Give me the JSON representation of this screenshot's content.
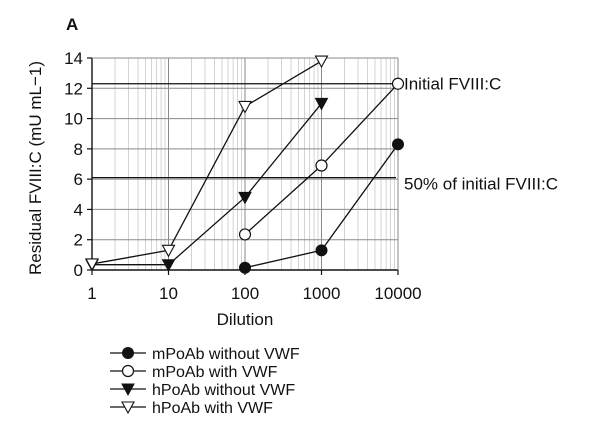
{
  "chart_data": {
    "type": "line",
    "panel_label": "A",
    "xlabel": "Dilution",
    "ylabel": "Residual FVIII:C (mU mL−1)",
    "x_scale": "log",
    "xlim": [
      1,
      10000
    ],
    "ylim": [
      0,
      14
    ],
    "x_ticks": [
      "1",
      "10",
      "100",
      "1000",
      "10000"
    ],
    "y_ticks": [
      "0",
      "2",
      "4",
      "6",
      "8",
      "10",
      "12",
      "14"
    ],
    "grid": true,
    "reference_lines": [
      {
        "label": "Initial FVIII:C",
        "y": 12.3
      },
      {
        "label": "50% of initial FVIII:C",
        "y": 6.1
      }
    ],
    "legend_position": "bottom-left",
    "series": [
      {
        "name": "mPoAb without VWF",
        "marker": "filled-circle",
        "x": [
          100,
          1000,
          10000
        ],
        "y": [
          0.15,
          1.3,
          8.3
        ]
      },
      {
        "name": "mPoAb with VWF",
        "marker": "open-circle",
        "x": [
          100,
          1000,
          10000
        ],
        "y": [
          2.35,
          6.9,
          12.3
        ]
      },
      {
        "name": "hPoAb without VWF",
        "marker": "filled-triangle-down",
        "x": [
          1,
          10,
          100,
          1000
        ],
        "y": [
          0.35,
          0.35,
          4.8,
          11.0
        ]
      },
      {
        "name": "hPoAb with VWF",
        "marker": "open-triangle-down",
        "x": [
          1,
          10,
          100,
          1000
        ],
        "y": [
          0.4,
          1.3,
          10.8,
          13.8
        ]
      }
    ]
  }
}
